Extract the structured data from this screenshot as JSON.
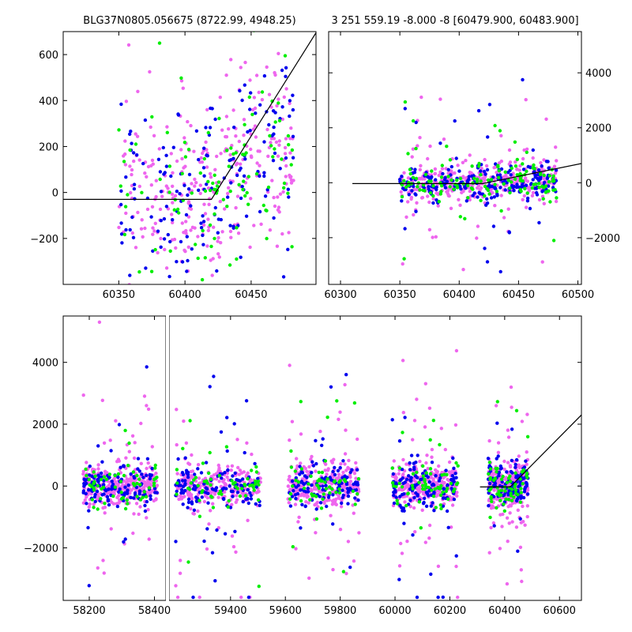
{
  "chart_data": [
    {
      "type": "scatter",
      "title": "BLG37N0805.056675 (8722.99, 4948.25)",
      "xlabel": "",
      "ylabel": "",
      "xlim": [
        60308,
        60499
      ],
      "ylim": [
        -400,
        700
      ],
      "x_ticks": [
        60350,
        60400,
        60450
      ],
      "y_ticks": [
        -200,
        0,
        200,
        400,
        600
      ],
      "y_axis_side": "left",
      "grid": false,
      "point_generation": {
        "seed": 11,
        "x_range": [
          60350,
          60482
        ],
        "y_sd": 210,
        "y_floor": -420,
        "y_ceiling": 720,
        "trend_gain": 9
      },
      "series": [
        {
          "color": "#ee66ee",
          "count": 300
        },
        {
          "color": "#0000ee",
          "count": 170
        },
        {
          "color": "#00ee00",
          "count": 110
        }
      ],
      "model_line": [
        [
          60308,
          -30
        ],
        [
          60420,
          -30
        ],
        [
          60499,
          695
        ]
      ]
    },
    {
      "type": "scatter",
      "title": "3 251 559.19 -8.000 -8 [60479.900, 60483.900]",
      "xlabel": "",
      "ylabel": "",
      "xlim": [
        60290,
        60503
      ],
      "ylim": [
        -3700,
        5500
      ],
      "x_ticks": [
        60300,
        60350,
        60400,
        60450,
        60500
      ],
      "y_ticks": [
        -2000,
        0,
        2000,
        4000
      ],
      "y_axis_side": "right",
      "grid": false,
      "point_generation": {
        "seed": 23,
        "x_range": [
          60350,
          60482
        ],
        "y_sd": 330,
        "y_floor": -3600,
        "y_ceiling": 5300,
        "trend_gain": 3,
        "outlier_rate": 0.12,
        "outlier_sd": 1500
      },
      "series": [
        {
          "color": "#ee66ee",
          "count": 420
        },
        {
          "color": "#0000ee",
          "count": 220
        },
        {
          "color": "#00ee00",
          "count": 140
        }
      ],
      "model_line": [
        [
          60310,
          -30
        ],
        [
          60420,
          -30
        ],
        [
          60503,
          700
        ]
      ]
    },
    {
      "type": "scatter",
      "title": "",
      "xlabel": "",
      "ylabel": "",
      "xlim": [
        58120,
        60680
      ],
      "ylim": [
        -3700,
        5500
      ],
      "x_ticks": [
        58200,
        58400,
        59400,
        59600,
        59800,
        60000,
        60200,
        60400,
        60600
      ],
      "y_ticks": [
        -2000,
        0,
        2000,
        4000
      ],
      "y_axis_side": "left",
      "grid": false,
      "broken_axis": {
        "left_segment": [
          58120,
          58440
        ],
        "right_segment": [
          59170,
          60680
        ]
      },
      "seasons": [
        [
          58180,
          58410
        ],
        [
          59200,
          59510
        ],
        [
          59610,
          59870
        ],
        [
          59990,
          60230
        ],
        [
          60340,
          60485
        ]
      ],
      "point_generation": {
        "seed": 37,
        "y_sd": 330,
        "y_floor": -3600,
        "y_ceiling": 5300,
        "outlier_rate": 0.14,
        "outlier_sd": 1600
      },
      "series": [
        {
          "color": "#ee66ee",
          "count": 1500
        },
        {
          "color": "#0000ee",
          "count": 650
        },
        {
          "color": "#00ee00",
          "count": 300
        }
      ],
      "model_line": [
        [
          60310,
          -30
        ],
        [
          60420,
          -30
        ],
        [
          60680,
          2300
        ]
      ]
    }
  ]
}
